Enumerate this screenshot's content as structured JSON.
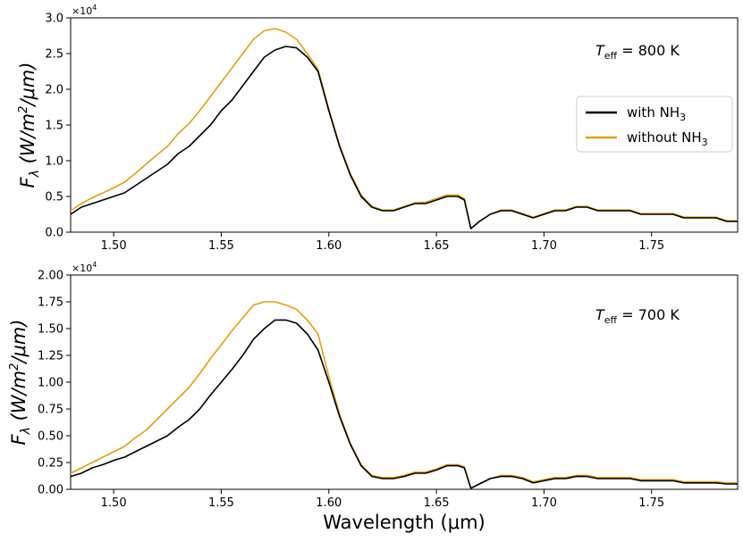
{
  "colors": {
    "with_nh3": "#000000",
    "without_nh3": "#e5a00d"
  },
  "chart_data": [
    {
      "type": "line",
      "panel": "top",
      "annotation": {
        "symbol": "T",
        "subscript": "eff",
        "rest": " = 800 K"
      },
      "ylabel": {
        "main": "F",
        "sub": "λ",
        "units": " (W/m",
        "sup": "2",
        "tail": "/μm)"
      },
      "xlabel": "",
      "offset_label": {
        "base": "×10",
        "exp": "4"
      },
      "xlim": [
        1.48,
        1.79
      ],
      "ylim": [
        0,
        3.0
      ],
      "x_ticks": [
        "1.50",
        "1.55",
        "1.60",
        "1.65",
        "1.70",
        "1.75"
      ],
      "x_tick_values": [
        1.5,
        1.55,
        1.6,
        1.65,
        1.7,
        1.75
      ],
      "y_ticks": [
        "0.0",
        "0.5",
        "1.0",
        "1.5",
        "2.0",
        "2.5",
        "3.0"
      ],
      "y_tick_values": [
        0.0,
        0.5,
        1.0,
        1.5,
        2.0,
        2.5,
        3.0
      ],
      "legend": [
        {
          "label": "with NH",
          "sub": "3",
          "color": "#000000"
        },
        {
          "label": "without NH",
          "sub": "3",
          "color": "#e5a00d"
        }
      ],
      "series": [
        {
          "name": "with NH3",
          "color": "#000000",
          "x": [
            1.48,
            1.485,
            1.49,
            1.495,
            1.5,
            1.505,
            1.51,
            1.515,
            1.52,
            1.525,
            1.53,
            1.535,
            1.54,
            1.545,
            1.55,
            1.555,
            1.56,
            1.565,
            1.57,
            1.575,
            1.58,
            1.585,
            1.59,
            1.595,
            1.6,
            1.605,
            1.61,
            1.615,
            1.62,
            1.625,
            1.63,
            1.635,
            1.64,
            1.645,
            1.65,
            1.655,
            1.66,
            1.663,
            1.666,
            1.67,
            1.675,
            1.68,
            1.685,
            1.69,
            1.695,
            1.7,
            1.705,
            1.71,
            1.715,
            1.72,
            1.725,
            1.73,
            1.735,
            1.74,
            1.745,
            1.75,
            1.755,
            1.76,
            1.765,
            1.77,
            1.775,
            1.78,
            1.785,
            1.79
          ],
          "y": [
            0.25,
            0.35,
            0.4,
            0.45,
            0.5,
            0.55,
            0.65,
            0.75,
            0.85,
            0.95,
            1.1,
            1.2,
            1.35,
            1.5,
            1.7,
            1.85,
            2.05,
            2.25,
            2.45,
            2.55,
            2.6,
            2.58,
            2.45,
            2.25,
            1.7,
            1.2,
            0.8,
            0.5,
            0.35,
            0.3,
            0.3,
            0.35,
            0.4,
            0.4,
            0.45,
            0.5,
            0.5,
            0.45,
            0.05,
            0.15,
            0.25,
            0.3,
            0.3,
            0.25,
            0.2,
            0.25,
            0.3,
            0.3,
            0.35,
            0.35,
            0.3,
            0.3,
            0.3,
            0.3,
            0.25,
            0.25,
            0.25,
            0.25,
            0.2,
            0.2,
            0.2,
            0.2,
            0.15,
            0.15
          ]
        },
        {
          "name": "without NH3",
          "color": "#e5a00d",
          "x": [
            1.48,
            1.485,
            1.49,
            1.495,
            1.5,
            1.505,
            1.51,
            1.515,
            1.52,
            1.525,
            1.53,
            1.535,
            1.54,
            1.545,
            1.55,
            1.555,
            1.56,
            1.565,
            1.57,
            1.575,
            1.58,
            1.585,
            1.59,
            1.595,
            1.6,
            1.605,
            1.61,
            1.615,
            1.62,
            1.625,
            1.63,
            1.635,
            1.64,
            1.645,
            1.65,
            1.655,
            1.66,
            1.663,
            1.666,
            1.67,
            1.675,
            1.68,
            1.685,
            1.69,
            1.695,
            1.7,
            1.705,
            1.71,
            1.715,
            1.72,
            1.725,
            1.73,
            1.735,
            1.74,
            1.745,
            1.75,
            1.755,
            1.76,
            1.765,
            1.77,
            1.775,
            1.78,
            1.785,
            1.79
          ],
          "y": [
            0.3,
            0.4,
            0.48,
            0.55,
            0.62,
            0.7,
            0.82,
            0.95,
            1.08,
            1.2,
            1.38,
            1.52,
            1.7,
            1.9,
            2.1,
            2.3,
            2.5,
            2.7,
            2.82,
            2.85,
            2.8,
            2.7,
            2.5,
            2.28,
            1.72,
            1.22,
            0.82,
            0.52,
            0.36,
            0.31,
            0.31,
            0.36,
            0.41,
            0.42,
            0.47,
            0.52,
            0.52,
            0.47,
            0.05,
            0.15,
            0.25,
            0.31,
            0.31,
            0.26,
            0.21,
            0.26,
            0.31,
            0.31,
            0.36,
            0.36,
            0.31,
            0.31,
            0.31,
            0.31,
            0.26,
            0.26,
            0.26,
            0.26,
            0.21,
            0.21,
            0.21,
            0.21,
            0.16,
            0.16
          ]
        }
      ]
    },
    {
      "type": "line",
      "panel": "bottom",
      "annotation": {
        "symbol": "T",
        "subscript": "eff",
        "rest": " = 700 K"
      },
      "ylabel": {
        "main": "F",
        "sub": "λ",
        "units": " (W/m",
        "sup": "2",
        "tail": "/μm)"
      },
      "xlabel": "Wavelength (μm)",
      "offset_label": {
        "base": "×10",
        "exp": "4"
      },
      "xlim": [
        1.48,
        1.79
      ],
      "ylim": [
        0,
        2.0
      ],
      "x_ticks": [
        "1.50",
        "1.55",
        "1.60",
        "1.65",
        "1.70",
        "1.75"
      ],
      "x_tick_values": [
        1.5,
        1.55,
        1.6,
        1.65,
        1.7,
        1.75
      ],
      "y_ticks": [
        "0.00",
        "0.25",
        "0.50",
        "0.75",
        "1.00",
        "1.25",
        "1.50",
        "1.75",
        "2.00"
      ],
      "y_tick_values": [
        0.0,
        0.25,
        0.5,
        0.75,
        1.0,
        1.25,
        1.5,
        1.75,
        2.0
      ],
      "series": [
        {
          "name": "with NH3",
          "color": "#000000",
          "x": [
            1.48,
            1.485,
            1.49,
            1.495,
            1.5,
            1.505,
            1.51,
            1.515,
            1.52,
            1.525,
            1.53,
            1.535,
            1.54,
            1.545,
            1.55,
            1.555,
            1.56,
            1.565,
            1.57,
            1.575,
            1.58,
            1.585,
            1.59,
            1.595,
            1.6,
            1.605,
            1.61,
            1.615,
            1.62,
            1.625,
            1.63,
            1.635,
            1.64,
            1.645,
            1.65,
            1.655,
            1.66,
            1.663,
            1.666,
            1.67,
            1.675,
            1.68,
            1.685,
            1.69,
            1.695,
            1.7,
            1.705,
            1.71,
            1.715,
            1.72,
            1.725,
            1.73,
            1.735,
            1.74,
            1.745,
            1.75,
            1.755,
            1.76,
            1.765,
            1.77,
            1.775,
            1.78,
            1.785,
            1.79
          ],
          "y": [
            0.12,
            0.15,
            0.2,
            0.23,
            0.27,
            0.3,
            0.35,
            0.4,
            0.45,
            0.5,
            0.58,
            0.65,
            0.75,
            0.88,
            1.0,
            1.12,
            1.25,
            1.4,
            1.5,
            1.58,
            1.58,
            1.55,
            1.45,
            1.3,
            1.0,
            0.68,
            0.42,
            0.22,
            0.12,
            0.1,
            0.1,
            0.12,
            0.15,
            0.15,
            0.18,
            0.22,
            0.22,
            0.2,
            0.01,
            0.05,
            0.1,
            0.12,
            0.12,
            0.1,
            0.06,
            0.08,
            0.1,
            0.1,
            0.12,
            0.12,
            0.1,
            0.1,
            0.1,
            0.1,
            0.08,
            0.08,
            0.08,
            0.08,
            0.06,
            0.06,
            0.06,
            0.06,
            0.05,
            0.05
          ]
        },
        {
          "name": "without NH3",
          "color": "#e5a00d",
          "x": [
            1.48,
            1.485,
            1.49,
            1.495,
            1.5,
            1.505,
            1.51,
            1.515,
            1.52,
            1.525,
            1.53,
            1.535,
            1.54,
            1.545,
            1.55,
            1.555,
            1.56,
            1.565,
            1.57,
            1.575,
            1.58,
            1.585,
            1.59,
            1.595,
            1.6,
            1.605,
            1.61,
            1.615,
            1.62,
            1.625,
            1.63,
            1.635,
            1.64,
            1.645,
            1.65,
            1.655,
            1.66,
            1.663,
            1.666,
            1.67,
            1.675,
            1.68,
            1.685,
            1.69,
            1.695,
            1.7,
            1.705,
            1.71,
            1.715,
            1.72,
            1.725,
            1.73,
            1.735,
            1.74,
            1.745,
            1.75,
            1.755,
            1.76,
            1.765,
            1.77,
            1.775,
            1.78,
            1.785,
            1.79
          ],
          "y": [
            0.15,
            0.2,
            0.25,
            0.3,
            0.35,
            0.4,
            0.48,
            0.55,
            0.65,
            0.75,
            0.85,
            0.95,
            1.08,
            1.22,
            1.35,
            1.48,
            1.6,
            1.72,
            1.75,
            1.75,
            1.72,
            1.68,
            1.58,
            1.45,
            1.05,
            0.7,
            0.43,
            0.23,
            0.13,
            0.11,
            0.11,
            0.13,
            0.16,
            0.16,
            0.19,
            0.23,
            0.23,
            0.21,
            0.01,
            0.05,
            0.1,
            0.13,
            0.13,
            0.11,
            0.07,
            0.09,
            0.11,
            0.11,
            0.13,
            0.13,
            0.11,
            0.11,
            0.11,
            0.11,
            0.09,
            0.09,
            0.09,
            0.09,
            0.07,
            0.07,
            0.07,
            0.07,
            0.06,
            0.06
          ]
        }
      ]
    }
  ]
}
